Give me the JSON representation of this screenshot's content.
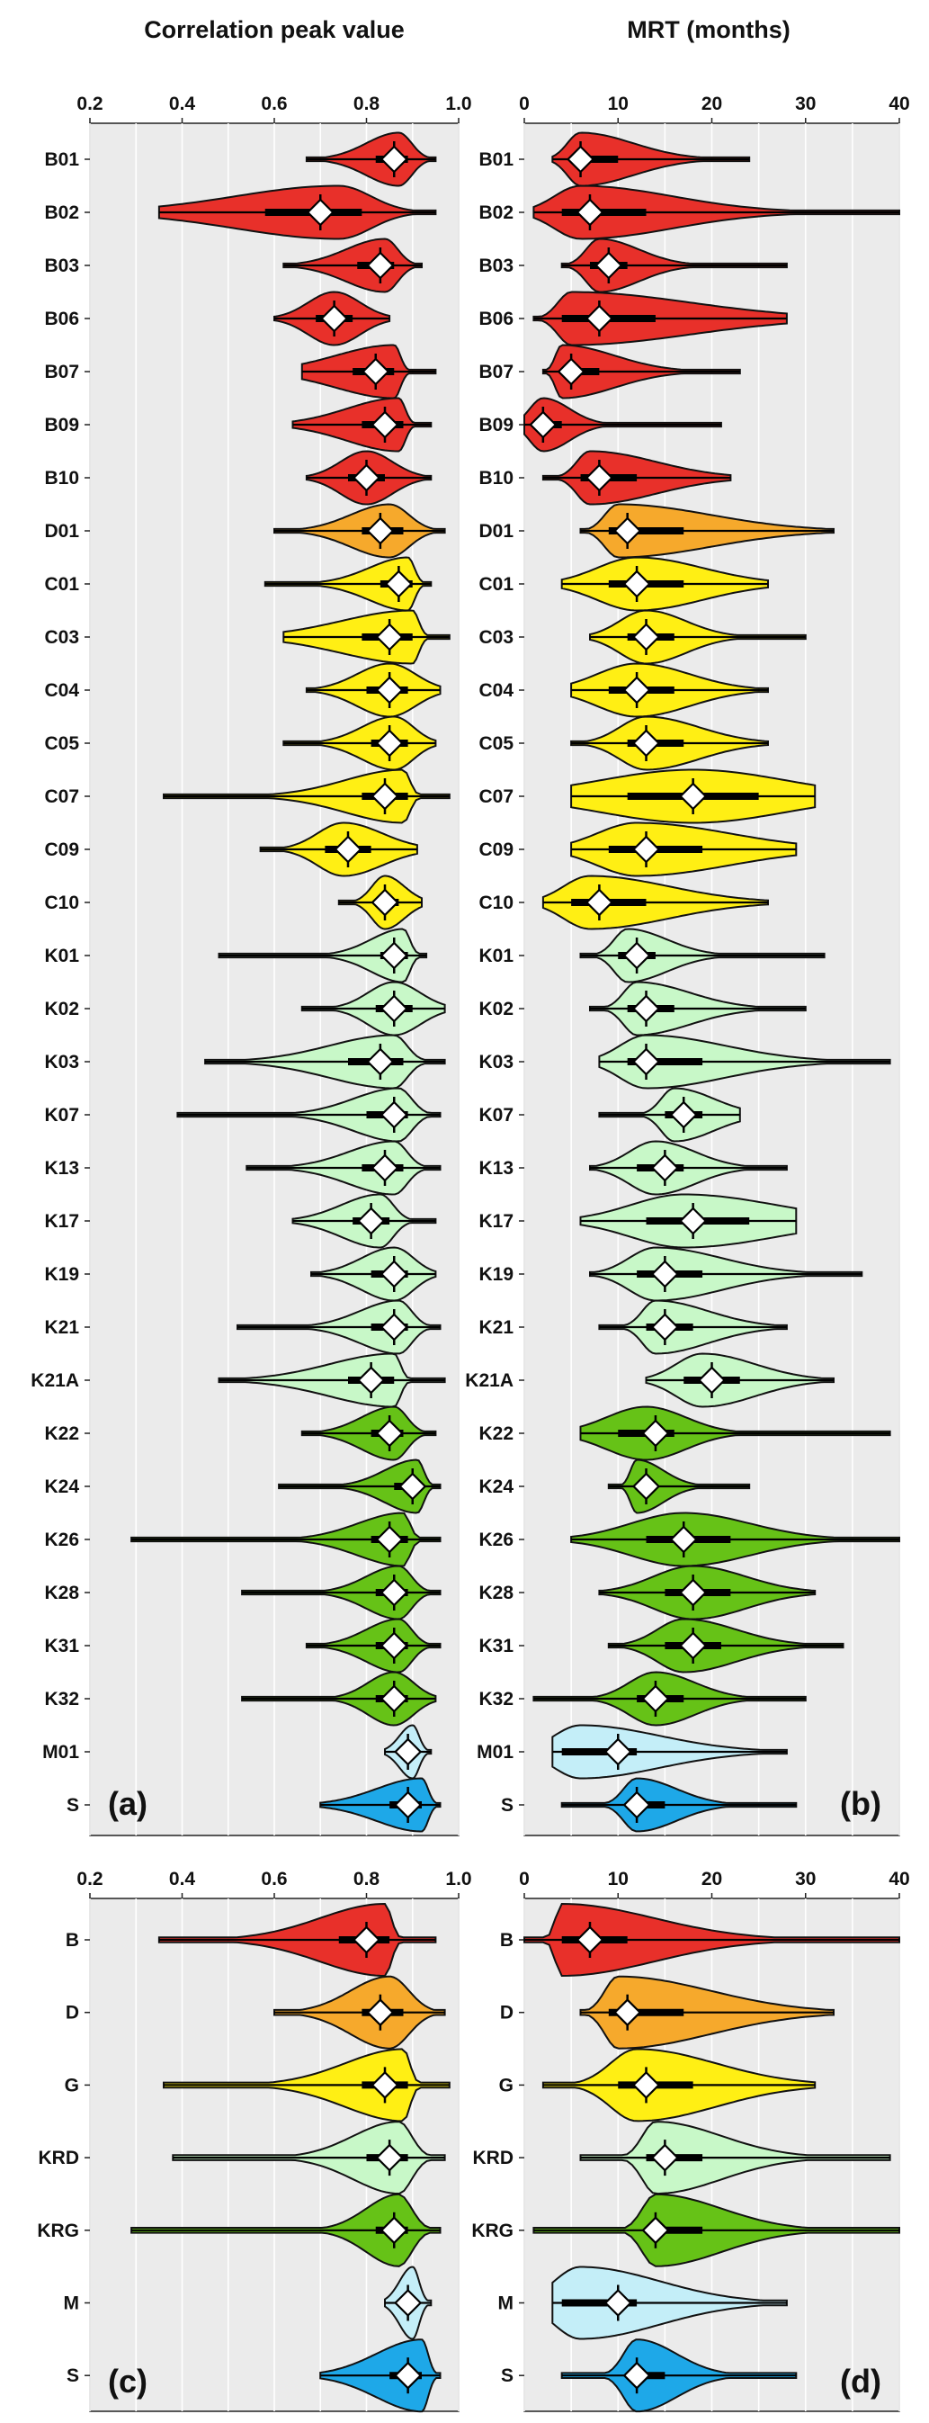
{
  "titles": {
    "left": "Correlation peak value",
    "right": "MRT (months)"
  },
  "colors": {
    "B": "#e8302a",
    "D": "#f6a92c",
    "G": "#ffef14",
    "KRD": "#c8f8c8",
    "KRG": "#66c217",
    "M": "#c4eef8",
    "S": "#1ea8e8"
  },
  "chart_data": [
    {
      "type": "violin",
      "panel_label": "(a)",
      "xlabel": "Correlation peak value",
      "xlim": [
        0.2,
        1.0
      ],
      "xticks": [
        "0.2",
        "0.4",
        "0.6",
        "0.8",
        "1.0"
      ],
      "grid": true,
      "series": [
        {
          "cat": "B01",
          "group": "B",
          "min": 0.67,
          "q1": 0.82,
          "med": 0.86,
          "q3": 0.89,
          "max": 0.95,
          "mode": 0.87
        },
        {
          "cat": "B02",
          "group": "B",
          "min": 0.35,
          "q1": 0.58,
          "med": 0.7,
          "q3": 0.79,
          "max": 0.95,
          "mode": 0.74
        },
        {
          "cat": "B03",
          "group": "B",
          "min": 0.62,
          "q1": 0.78,
          "med": 0.83,
          "q3": 0.86,
          "max": 0.92,
          "mode": 0.84
        },
        {
          "cat": "B06",
          "group": "B",
          "min": 0.6,
          "q1": 0.69,
          "med": 0.73,
          "q3": 0.77,
          "max": 0.85,
          "mode": 0.73
        },
        {
          "cat": "B07",
          "group": "B",
          "min": 0.66,
          "q1": 0.77,
          "med": 0.82,
          "q3": 0.86,
          "max": 0.95,
          "mode": 0.86
        },
        {
          "cat": "B09",
          "group": "B",
          "min": 0.64,
          "q1": 0.79,
          "med": 0.84,
          "q3": 0.88,
          "max": 0.94,
          "mode": 0.87
        },
        {
          "cat": "B10",
          "group": "B",
          "min": 0.67,
          "q1": 0.76,
          "med": 0.8,
          "q3": 0.84,
          "max": 0.94,
          "mode": 0.8
        },
        {
          "cat": "D01",
          "group": "D",
          "min": 0.6,
          "q1": 0.79,
          "med": 0.83,
          "q3": 0.88,
          "max": 0.97,
          "mode": 0.85
        },
        {
          "cat": "C01",
          "group": "G",
          "min": 0.58,
          "q1": 0.83,
          "med": 0.87,
          "q3": 0.9,
          "max": 0.94,
          "mode": 0.89
        },
        {
          "cat": "C03",
          "group": "G",
          "min": 0.62,
          "q1": 0.79,
          "med": 0.85,
          "q3": 0.9,
          "max": 0.98,
          "mode": 0.9
        },
        {
          "cat": "C04",
          "group": "G",
          "min": 0.67,
          "q1": 0.8,
          "med": 0.85,
          "q3": 0.89,
          "max": 0.96,
          "mode": 0.85
        },
        {
          "cat": "C05",
          "group": "G",
          "min": 0.62,
          "q1": 0.81,
          "med": 0.85,
          "q3": 0.89,
          "max": 0.95,
          "mode": 0.86
        },
        {
          "cat": "C07",
          "group": "G",
          "min": 0.36,
          "q1": 0.79,
          "med": 0.84,
          "q3": 0.89,
          "max": 0.98,
          "mode": 0.88
        },
        {
          "cat": "C09",
          "group": "G",
          "min": 0.57,
          "q1": 0.71,
          "med": 0.76,
          "q3": 0.81,
          "max": 0.91,
          "mode": 0.75
        },
        {
          "cat": "C10",
          "group": "G",
          "min": 0.74,
          "q1": 0.82,
          "med": 0.84,
          "q3": 0.87,
          "max": 0.92,
          "mode": 0.84
        },
        {
          "cat": "K01",
          "group": "KRD",
          "min": 0.48,
          "q1": 0.83,
          "med": 0.86,
          "q3": 0.89,
          "max": 0.93,
          "mode": 0.88
        },
        {
          "cat": "K02",
          "group": "KRD",
          "min": 0.66,
          "q1": 0.82,
          "med": 0.86,
          "q3": 0.9,
          "max": 0.97,
          "mode": 0.86
        },
        {
          "cat": "K03",
          "group": "KRD",
          "min": 0.45,
          "q1": 0.76,
          "med": 0.83,
          "q3": 0.88,
          "max": 0.97,
          "mode": 0.86
        },
        {
          "cat": "K07",
          "group": "KRD",
          "min": 0.39,
          "q1": 0.8,
          "med": 0.86,
          "q3": 0.89,
          "max": 0.96,
          "mode": 0.87
        },
        {
          "cat": "K13",
          "group": "KRD",
          "min": 0.54,
          "q1": 0.79,
          "med": 0.84,
          "q3": 0.88,
          "max": 0.96,
          "mode": 0.86
        },
        {
          "cat": "K17",
          "group": "KRD",
          "min": 0.64,
          "q1": 0.77,
          "med": 0.81,
          "q3": 0.85,
          "max": 0.95,
          "mode": 0.83
        },
        {
          "cat": "K19",
          "group": "KRD",
          "min": 0.68,
          "q1": 0.81,
          "med": 0.86,
          "q3": 0.89,
          "max": 0.95,
          "mode": 0.86
        },
        {
          "cat": "K21",
          "group": "KRD",
          "min": 0.52,
          "q1": 0.81,
          "med": 0.86,
          "q3": 0.89,
          "max": 0.96,
          "mode": 0.87
        },
        {
          "cat": "K21A",
          "group": "KRD",
          "min": 0.48,
          "q1": 0.76,
          "med": 0.81,
          "q3": 0.86,
          "max": 0.97,
          "mode": 0.86
        },
        {
          "cat": "K22",
          "group": "KRG",
          "min": 0.66,
          "q1": 0.81,
          "med": 0.85,
          "q3": 0.88,
          "max": 0.95,
          "mode": 0.86
        },
        {
          "cat": "K24",
          "group": "KRG",
          "min": 0.61,
          "q1": 0.86,
          "med": 0.9,
          "q3": 0.92,
          "max": 0.96,
          "mode": 0.91
        },
        {
          "cat": "K26",
          "group": "KRG",
          "min": 0.29,
          "q1": 0.81,
          "med": 0.85,
          "q3": 0.89,
          "max": 0.96,
          "mode": 0.88
        },
        {
          "cat": "K28",
          "group": "KRG",
          "min": 0.53,
          "q1": 0.82,
          "med": 0.86,
          "q3": 0.89,
          "max": 0.96,
          "mode": 0.87
        },
        {
          "cat": "K31",
          "group": "KRG",
          "min": 0.67,
          "q1": 0.82,
          "med": 0.86,
          "q3": 0.89,
          "max": 0.96,
          "mode": 0.87
        },
        {
          "cat": "K32",
          "group": "KRG",
          "min": 0.53,
          "q1": 0.82,
          "med": 0.86,
          "q3": 0.89,
          "max": 0.95,
          "mode": 0.86
        },
        {
          "cat": "M01",
          "group": "M",
          "min": 0.84,
          "q1": 0.88,
          "med": 0.89,
          "q3": 0.91,
          "max": 0.94,
          "mode": 0.9
        },
        {
          "cat": "S",
          "group": "S",
          "min": 0.7,
          "q1": 0.85,
          "med": 0.89,
          "q3": 0.92,
          "max": 0.96,
          "mode": 0.92
        }
      ]
    },
    {
      "type": "violin",
      "panel_label": "(b)",
      "xlabel": "MRT (months)",
      "xlim": [
        0,
        40
      ],
      "xticks": [
        "0",
        "10",
        "20",
        "30",
        "40"
      ],
      "grid": true,
      "series": [
        {
          "cat": "B01",
          "group": "B",
          "min": 3,
          "q1": 5,
          "med": 6,
          "q3": 10,
          "max": 24,
          "mode": 6
        },
        {
          "cat": "B02",
          "group": "B",
          "min": 1,
          "q1": 4,
          "med": 7,
          "q3": 13,
          "max": 40,
          "mode": 6
        },
        {
          "cat": "B03",
          "group": "B",
          "min": 4,
          "q1": 7,
          "med": 9,
          "q3": 11,
          "max": 28,
          "mode": 8
        },
        {
          "cat": "B06",
          "group": "B",
          "min": 1,
          "q1": 4,
          "med": 8,
          "q3": 14,
          "max": 28,
          "mode": 5
        },
        {
          "cat": "B07",
          "group": "B",
          "min": 2,
          "q1": 4,
          "med": 5,
          "q3": 8,
          "max": 23,
          "mode": 4
        },
        {
          "cat": "B09",
          "group": "B",
          "min": 0,
          "q1": 1,
          "med": 2,
          "q3": 4,
          "max": 21,
          "mode": 2
        },
        {
          "cat": "B10",
          "group": "B",
          "min": 2,
          "q1": 6,
          "med": 8,
          "q3": 12,
          "max": 22,
          "mode": 7
        },
        {
          "cat": "D01",
          "group": "D",
          "min": 6,
          "q1": 9,
          "med": 11,
          "q3": 17,
          "max": 33,
          "mode": 10
        },
        {
          "cat": "C01",
          "group": "G",
          "min": 4,
          "q1": 9,
          "med": 12,
          "q3": 17,
          "max": 26,
          "mode": 12
        },
        {
          "cat": "C03",
          "group": "G",
          "min": 7,
          "q1": 11,
          "med": 13,
          "q3": 16,
          "max": 30,
          "mode": 13
        },
        {
          "cat": "C04",
          "group": "G",
          "min": 5,
          "q1": 9,
          "med": 12,
          "q3": 16,
          "max": 26,
          "mode": 12
        },
        {
          "cat": "C05",
          "group": "G",
          "min": 5,
          "q1": 11,
          "med": 13,
          "q3": 17,
          "max": 26,
          "mode": 13
        },
        {
          "cat": "C07",
          "group": "G",
          "min": 5,
          "q1": 11,
          "med": 18,
          "q3": 25,
          "max": 31,
          "mode": 18
        },
        {
          "cat": "C09",
          "group": "G",
          "min": 5,
          "q1": 9,
          "med": 13,
          "q3": 19,
          "max": 29,
          "mode": 12
        },
        {
          "cat": "C10",
          "group": "G",
          "min": 2,
          "q1": 5,
          "med": 8,
          "q3": 13,
          "max": 26,
          "mode": 7
        },
        {
          "cat": "K01",
          "group": "KRD",
          "min": 6,
          "q1": 10,
          "med": 12,
          "q3": 14,
          "max": 32,
          "mode": 11
        },
        {
          "cat": "K02",
          "group": "KRD",
          "min": 7,
          "q1": 11,
          "med": 13,
          "q3": 16,
          "max": 30,
          "mode": 12
        },
        {
          "cat": "K03",
          "group": "KRD",
          "min": 8,
          "q1": 11,
          "med": 13,
          "q3": 19,
          "max": 39,
          "mode": 13
        },
        {
          "cat": "K07",
          "group": "KRD",
          "min": 8,
          "q1": 15,
          "med": 17,
          "q3": 19,
          "max": 23,
          "mode": 16
        },
        {
          "cat": "K13",
          "group": "KRD",
          "min": 7,
          "q1": 12,
          "med": 15,
          "q3": 17,
          "max": 28,
          "mode": 14
        },
        {
          "cat": "K17",
          "group": "KRD",
          "min": 6,
          "q1": 13,
          "med": 18,
          "q3": 24,
          "max": 29,
          "mode": 17
        },
        {
          "cat": "K19",
          "group": "KRD",
          "min": 7,
          "q1": 12,
          "med": 15,
          "q3": 19,
          "max": 36,
          "mode": 14
        },
        {
          "cat": "K21",
          "group": "KRD",
          "min": 8,
          "q1": 13,
          "med": 15,
          "q3": 18,
          "max": 28,
          "mode": 14
        },
        {
          "cat": "K21A",
          "group": "KRD",
          "min": 13,
          "q1": 17,
          "med": 20,
          "q3": 23,
          "max": 33,
          "mode": 19
        },
        {
          "cat": "K22",
          "group": "KRG",
          "min": 6,
          "q1": 10,
          "med": 14,
          "q3": 16,
          "max": 39,
          "mode": 13
        },
        {
          "cat": "K24",
          "group": "KRG",
          "min": 9,
          "q1": 12,
          "med": 13,
          "q3": 14,
          "max": 24,
          "mode": 12
        },
        {
          "cat": "K26",
          "group": "KRG",
          "min": 5,
          "q1": 13,
          "med": 17,
          "q3": 22,
          "max": 40,
          "mode": 17
        },
        {
          "cat": "K28",
          "group": "KRG",
          "min": 8,
          "q1": 15,
          "med": 18,
          "q3": 22,
          "max": 31,
          "mode": 18
        },
        {
          "cat": "K31",
          "group": "KRG",
          "min": 9,
          "q1": 15,
          "med": 18,
          "q3": 21,
          "max": 34,
          "mode": 17
        },
        {
          "cat": "K32",
          "group": "KRG",
          "min": 1,
          "q1": 12,
          "med": 14,
          "q3": 17,
          "max": 30,
          "mode": 14
        },
        {
          "cat": "M01",
          "group": "M",
          "min": 3,
          "q1": 4,
          "med": 10,
          "q3": 12,
          "max": 28,
          "mode": 6
        },
        {
          "cat": "S",
          "group": "S",
          "min": 4,
          "q1": 11,
          "med": 12,
          "q3": 15,
          "max": 29,
          "mode": 12
        }
      ]
    },
    {
      "type": "violin",
      "panel_label": "(c)",
      "xlabel": "",
      "xlim": [
        0.2,
        1.0
      ],
      "xticks": [
        "0.2",
        "0.4",
        "0.6",
        "0.8",
        "1.0"
      ],
      "grid": true,
      "series": [
        {
          "cat": "B",
          "group": "B",
          "min": 0.35,
          "q1": 0.74,
          "med": 0.8,
          "q3": 0.85,
          "max": 0.95,
          "mode": 0.84
        },
        {
          "cat": "D",
          "group": "D",
          "min": 0.6,
          "q1": 0.79,
          "med": 0.83,
          "q3": 0.88,
          "max": 0.97,
          "mode": 0.85
        },
        {
          "cat": "G",
          "group": "G",
          "min": 0.36,
          "q1": 0.79,
          "med": 0.84,
          "q3": 0.89,
          "max": 0.98,
          "mode": 0.88
        },
        {
          "cat": "KRD",
          "group": "KRD",
          "min": 0.38,
          "q1": 0.8,
          "med": 0.85,
          "q3": 0.89,
          "max": 0.97,
          "mode": 0.87
        },
        {
          "cat": "KRG",
          "group": "KRG",
          "min": 0.29,
          "q1": 0.82,
          "med": 0.86,
          "q3": 0.89,
          "max": 0.96,
          "mode": 0.87
        },
        {
          "cat": "M",
          "group": "M",
          "min": 0.84,
          "q1": 0.88,
          "med": 0.89,
          "q3": 0.91,
          "max": 0.94,
          "mode": 0.9
        },
        {
          "cat": "S",
          "group": "S",
          "min": 0.7,
          "q1": 0.85,
          "med": 0.89,
          "q3": 0.92,
          "max": 0.96,
          "mode": 0.92
        }
      ]
    },
    {
      "type": "violin",
      "panel_label": "(d)",
      "xlabel": "",
      "xlim": [
        0,
        40
      ],
      "xticks": [
        "0",
        "10",
        "20",
        "30",
        "40"
      ],
      "grid": true,
      "series": [
        {
          "cat": "B",
          "group": "B",
          "min": 0,
          "q1": 4,
          "med": 7,
          "q3": 11,
          "max": 40,
          "mode": 4
        },
        {
          "cat": "D",
          "group": "D",
          "min": 6,
          "q1": 9,
          "med": 11,
          "q3": 17,
          "max": 33,
          "mode": 10
        },
        {
          "cat": "G",
          "group": "G",
          "min": 2,
          "q1": 10,
          "med": 13,
          "q3": 18,
          "max": 31,
          "mode": 12
        },
        {
          "cat": "KRD",
          "group": "KRD",
          "min": 6,
          "q1": 13,
          "med": 15,
          "q3": 19,
          "max": 39,
          "mode": 14
        },
        {
          "cat": "KRG",
          "group": "KRG",
          "min": 1,
          "q1": 13,
          "med": 14,
          "q3": 19,
          "max": 40,
          "mode": 14
        },
        {
          "cat": "M",
          "group": "M",
          "min": 3,
          "q1": 4,
          "med": 10,
          "q3": 12,
          "max": 28,
          "mode": 6
        },
        {
          "cat": "S",
          "group": "S",
          "min": 4,
          "q1": 11,
          "med": 12,
          "q3": 15,
          "max": 29,
          "mode": 12
        }
      ]
    }
  ]
}
